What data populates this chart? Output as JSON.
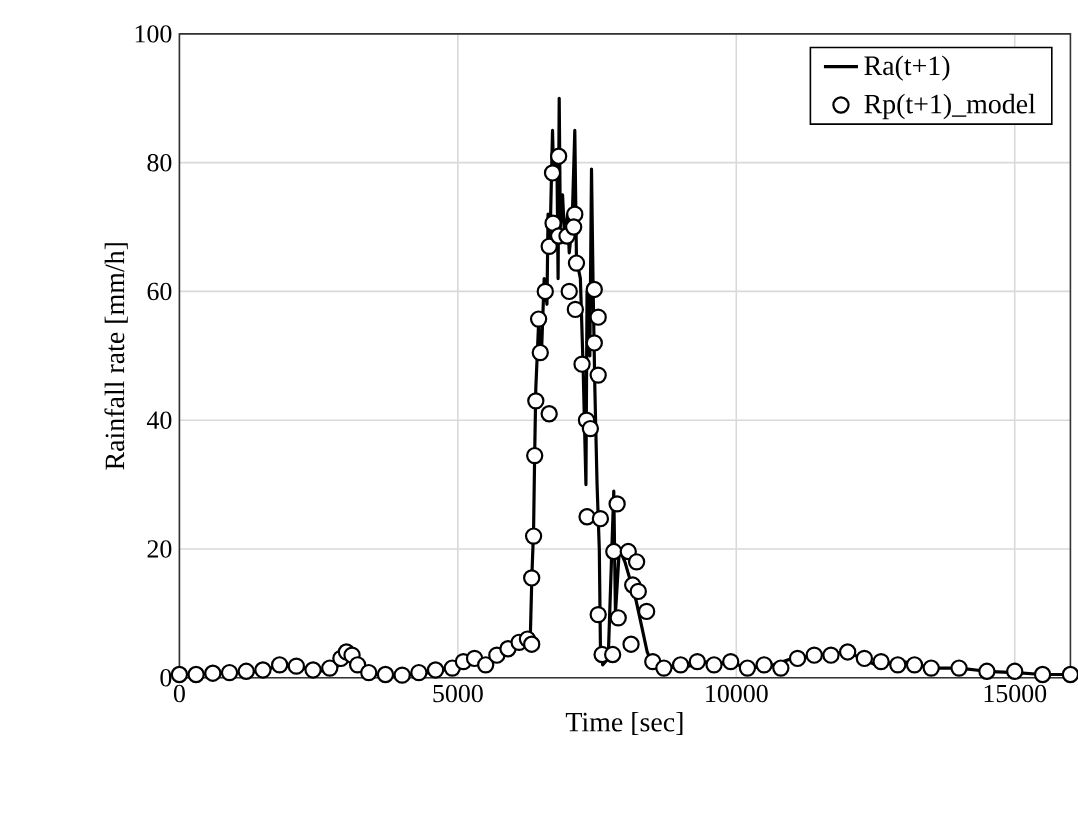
{
  "chart_data": {
    "type": "line",
    "xlabel": "Time [sec]",
    "ylabel": "Rainfall rate [mm/h]",
    "xlim": [
      0,
      16000
    ],
    "ylim": [
      0,
      100
    ],
    "xticks": [
      0,
      5000,
      10000,
      15000
    ],
    "yticks": [
      0,
      20,
      40,
      60,
      80,
      100
    ],
    "grid": true,
    "legend": "top right",
    "series": [
      {
        "name": "Ra(t+1)",
        "line_style": "solid",
        "color": "#000000",
        "x": [
          0,
          500,
          1000,
          1500,
          1800,
          2200,
          2600,
          2900,
          3100,
          3300,
          3500,
          4000,
          4500,
          4900,
          5200,
          5500,
          5700,
          6000,
          6200,
          6300,
          6330,
          6360,
          6380,
          6400,
          6450,
          6500,
          6550,
          6600,
          6620,
          6650,
          6700,
          6720,
          6780,
          6800,
          6820,
          6840,
          6880,
          6920,
          6970,
          7000,
          7050,
          7100,
          7130,
          7200,
          7250,
          7300,
          7320,
          7370,
          7400,
          7430,
          7460,
          7500,
          7540,
          7560,
          7600,
          7700,
          7800,
          7830,
          7900,
          8000,
          8100,
          8200,
          8300,
          8400,
          8500,
          9000,
          9500,
          10000,
          10500,
          11000,
          11500,
          12000,
          12500,
          13000,
          13500,
          14000,
          14500,
          15000,
          15500,
          16000
        ],
        "values": [
          0.5,
          0.6,
          0.8,
          1,
          2,
          1.5,
          1,
          2,
          4,
          2,
          0.5,
          0.3,
          0.8,
          1.5,
          3,
          2,
          3.5,
          5,
          6,
          6,
          16,
          23,
          35,
          45,
          55,
          50,
          62,
          58,
          72,
          66,
          85,
          78,
          80,
          62,
          90,
          70,
          75,
          68,
          72,
          66,
          70,
          85,
          65,
          62,
          48,
          30,
          60,
          50,
          79,
          60,
          45,
          30,
          20,
          5,
          2,
          3,
          29,
          10,
          20,
          18,
          15,
          12,
          8,
          4,
          2,
          1.5,
          2.5,
          2,
          1.5,
          3,
          3.5,
          4,
          2,
          2.5,
          1.5,
          1.5,
          1,
          0.8,
          0.5,
          0.5
        ]
      },
      {
        "name": "Rp(t+1)_model",
        "type": "scatter",
        "marker": "circle",
        "color": "#000000",
        "x": [
          0,
          300,
          600,
          900,
          1200,
          1500,
          1800,
          2100,
          2400,
          2700,
          2900,
          3000,
          3100,
          3200,
          3400,
          3700,
          4000,
          4300,
          4600,
          4900,
          5100,
          5300,
          5500,
          5700,
          5900,
          6100,
          6250,
          6326,
          6326,
          6360,
          6380,
          6400,
          6640,
          6480,
          6450,
          6570,
          6640,
          6700,
          6810,
          6710,
          6810,
          6960,
          7100,
          7080,
          7130,
          7110,
          7000,
          7450,
          7520,
          7450,
          7520,
          7230,
          7310,
          7380,
          7320,
          7560,
          7860,
          7800,
          8060,
          8210,
          8140,
          8240,
          8390,
          8110,
          7880,
          7520,
          7590,
          7780,
          8500,
          8700,
          9000,
          9300,
          9600,
          9900,
          10200,
          10500,
          10800,
          11100,
          11400,
          11700,
          12000,
          12300,
          12600,
          12900,
          13200,
          13500,
          14000,
          14500,
          15000,
          15500,
          16000
        ],
        "values": [
          0.5,
          0.5,
          0.7,
          0.8,
          1,
          1.2,
          2,
          1.8,
          1.2,
          1.5,
          3,
          4,
          3.5,
          2,
          0.8,
          0.5,
          0.4,
          0.8,
          1.2,
          1.5,
          2.5,
          3,
          2,
          3.5,
          4.5,
          5.5,
          6,
          5.2,
          15.5,
          22,
          34.5,
          43,
          41,
          50.5,
          55.7,
          60,
          67,
          78.4,
          81,
          70.6,
          68.6,
          68.6,
          72,
          70,
          64.4,
          57.2,
          60,
          60.3,
          56,
          52,
          47,
          48.7,
          40,
          38.7,
          25,
          24.7,
          27,
          19.6,
          19.6,
          18,
          14.4,
          13.4,
          10.3,
          5.2,
          9.3,
          9.8,
          3.6,
          3.6,
          2.5,
          1.5,
          2,
          2.5,
          2,
          2.5,
          1.5,
          2,
          1.5,
          3,
          3.5,
          3.5,
          4,
          3,
          2.5,
          2,
          2,
          1.5,
          1.5,
          1,
          1,
          0.5,
          0.5
        ]
      }
    ]
  }
}
